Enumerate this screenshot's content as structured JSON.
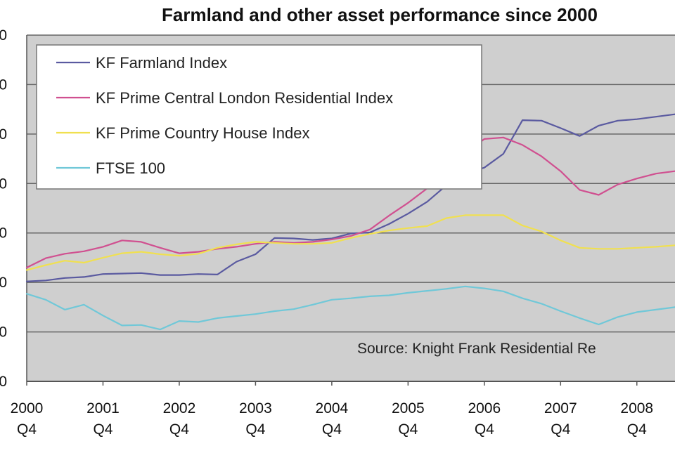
{
  "chart_data": {
    "type": "line",
    "title": "Farmland and other asset performance since 2000",
    "xlabel": "",
    "ylabel": "",
    "x_ticks": [
      {
        "year": "2000",
        "quarter": "Q4"
      },
      {
        "year": "2001",
        "quarter": "Q4"
      },
      {
        "year": "2002",
        "quarter": "Q4"
      },
      {
        "year": "2003",
        "quarter": "Q4"
      },
      {
        "year": "2004",
        "quarter": "Q4"
      },
      {
        "year": "2005",
        "quarter": "Q4"
      },
      {
        "year": "2006",
        "quarter": "Q4"
      },
      {
        "year": "2007",
        "quarter": "Q4"
      },
      {
        "year": "2008",
        "quarter": "Q4"
      }
    ],
    "xlim": [
      2000.75,
      2009.25
    ],
    "ylim": [
      0,
      7
    ],
    "y_gridlines": [
      0,
      1,
      2,
      3,
      4,
      5,
      6,
      7
    ],
    "grid": true,
    "legend_position": "top-left",
    "background_color": "#cfcfcf",
    "annotation": "Source: Knight Frank Residential Re",
    "series": [
      {
        "name": "KF Farmland Index",
        "color": "#5a5aa0",
        "x": [
          2000.75,
          2001.0,
          2001.25,
          2001.5,
          2001.75,
          2002.0,
          2002.25,
          2002.5,
          2002.75,
          2003.0,
          2003.25,
          2003.5,
          2003.75,
          2004.0,
          2004.25,
          2004.5,
          2004.75,
          2005.0,
          2005.25,
          2005.5,
          2005.75,
          2006.0,
          2006.25,
          2006.5,
          2006.75,
          2007.0,
          2007.25,
          2007.5,
          2007.75,
          2008.0,
          2008.25,
          2008.5,
          2008.75,
          2009.0,
          2009.25
        ],
        "values": [
          2.02,
          2.04,
          2.09,
          2.11,
          2.17,
          2.18,
          2.19,
          2.15,
          2.15,
          2.17,
          2.16,
          2.42,
          2.57,
          2.9,
          2.89,
          2.86,
          2.89,
          2.99,
          3.01,
          3.18,
          3.39,
          3.63,
          3.96,
          4.2,
          4.32,
          4.6,
          5.28,
          5.27,
          5.12,
          4.96,
          5.17,
          5.27,
          5.3,
          5.35,
          5.4
        ]
      },
      {
        "name": "KF Prime Central London Residential Index",
        "color": "#d05090",
        "x": [
          2000.75,
          2001.0,
          2001.25,
          2001.5,
          2001.75,
          2002.0,
          2002.25,
          2002.5,
          2002.75,
          2003.0,
          2003.25,
          2003.5,
          2003.75,
          2004.0,
          2004.25,
          2004.5,
          2004.75,
          2005.0,
          2005.25,
          2005.5,
          2005.75,
          2006.0,
          2006.25,
          2006.5,
          2006.75,
          2007.0,
          2007.25,
          2007.5,
          2007.75,
          2008.0,
          2008.25,
          2008.5,
          2008.75,
          2009.0,
          2009.25
        ],
        "values": [
          2.3,
          2.49,
          2.58,
          2.63,
          2.72,
          2.85,
          2.82,
          2.7,
          2.59,
          2.62,
          2.68,
          2.72,
          2.78,
          2.82,
          2.8,
          2.82,
          2.87,
          2.94,
          3.07,
          3.35,
          3.61,
          3.9,
          4.25,
          4.6,
          4.9,
          4.93,
          4.78,
          4.55,
          4.25,
          3.87,
          3.77,
          3.98,
          4.1,
          4.2,
          4.25
        ]
      },
      {
        "name": "KF Prime Country House Index",
        "color": "#f0e050",
        "x": [
          2000.75,
          2001.0,
          2001.25,
          2001.5,
          2001.75,
          2002.0,
          2002.25,
          2002.5,
          2002.75,
          2003.0,
          2003.25,
          2003.5,
          2003.75,
          2004.0,
          2004.25,
          2004.5,
          2004.75,
          2005.0,
          2005.25,
          2005.5,
          2005.75,
          2006.0,
          2006.25,
          2006.5,
          2006.75,
          2007.0,
          2007.25,
          2007.5,
          2007.75,
          2008.0,
          2008.25,
          2008.5,
          2008.75,
          2009.0,
          2009.25
        ],
        "values": [
          2.25,
          2.35,
          2.44,
          2.4,
          2.5,
          2.59,
          2.62,
          2.57,
          2.54,
          2.58,
          2.7,
          2.77,
          2.82,
          2.8,
          2.78,
          2.78,
          2.8,
          2.9,
          2.98,
          3.05,
          3.1,
          3.14,
          3.3,
          3.36,
          3.36,
          3.36,
          3.15,
          3.03,
          2.85,
          2.7,
          2.68,
          2.68,
          2.7,
          2.72,
          2.75
        ]
      },
      {
        "name": "FTSE 100",
        "color": "#70c8d8",
        "x": [
          2000.75,
          2001.0,
          2001.25,
          2001.5,
          2001.75,
          2002.0,
          2002.25,
          2002.5,
          2002.75,
          2003.0,
          2003.25,
          2003.5,
          2003.75,
          2004.0,
          2004.25,
          2004.5,
          2004.75,
          2005.0,
          2005.25,
          2005.5,
          2005.75,
          2006.0,
          2006.25,
          2006.5,
          2006.75,
          2007.0,
          2007.25,
          2007.5,
          2007.75,
          2008.0,
          2008.25,
          2008.5,
          2008.75,
          2009.0,
          2009.25
        ],
        "values": [
          1.77,
          1.65,
          1.45,
          1.55,
          1.33,
          1.13,
          1.14,
          1.05,
          1.22,
          1.2,
          1.28,
          1.32,
          1.36,
          1.42,
          1.46,
          1.55,
          1.65,
          1.68,
          1.72,
          1.74,
          1.79,
          1.83,
          1.87,
          1.92,
          1.88,
          1.82,
          1.68,
          1.57,
          1.42,
          1.28,
          1.15,
          1.3,
          1.4,
          1.45,
          1.5
        ]
      }
    ]
  }
}
